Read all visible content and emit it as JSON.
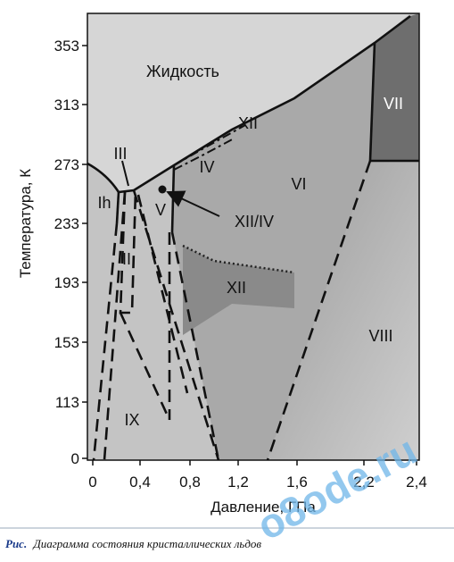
{
  "x_axis": {
    "label": "Давление, ГПа",
    "ticks": [
      "0",
      "0,4",
      "0,8",
      "1,2",
      "1,6",
      "2,2",
      "2,4"
    ]
  },
  "y_axis": {
    "label": "Температура, К",
    "ticks": [
      "0",
      "113",
      "153",
      "193",
      "233",
      "273",
      "313",
      "353"
    ]
  },
  "phases": {
    "liquid": "Жидкость",
    "ice_vii": "VII",
    "ice_xii_line": "XII",
    "ice_iv": "IV",
    "ice_vi": "VI",
    "ice_iii": "III",
    "ice_ih": "Ih",
    "ice_v": "V",
    "ice_ii": "II",
    "ice_xii_region": "XII",
    "ice_viii": "VIII",
    "ice_ix": "IX",
    "point_label": "XII/IV"
  },
  "caption": {
    "prefix": "Рис.",
    "text": "Диаграмма состояния кристаллических льдов"
  },
  "watermark": "o8ode.ru"
}
